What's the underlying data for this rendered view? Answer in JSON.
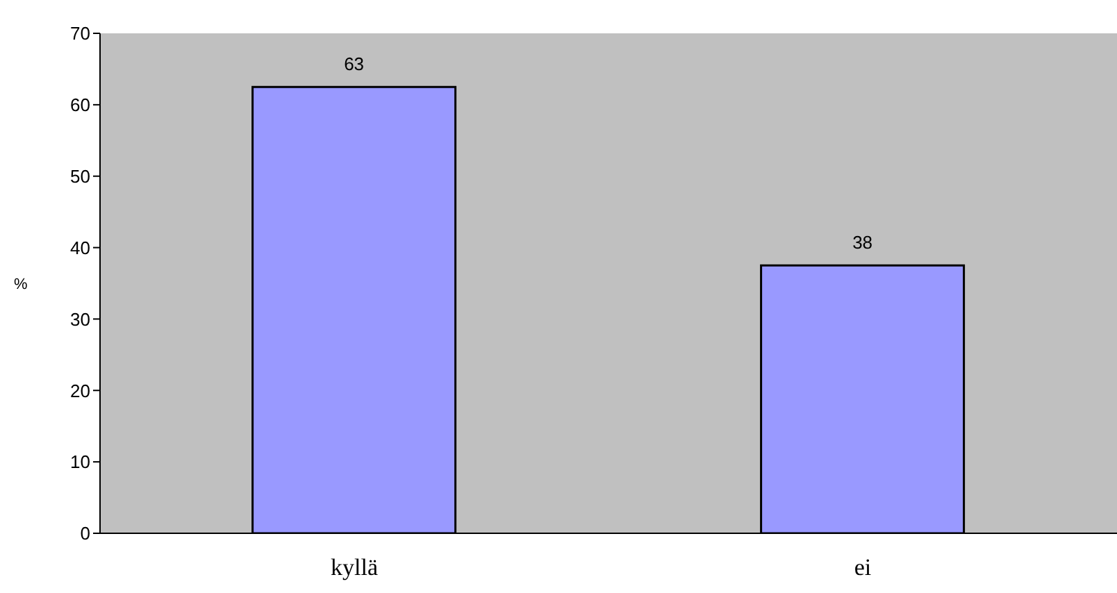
{
  "chart_data": {
    "type": "bar",
    "ylabel": "%",
    "categories": [
      "kyllä",
      "ei"
    ],
    "series": [
      {
        "color": "#9999ff",
        "values": [
          62.5,
          37.5
        ],
        "value_labels": [
          "63",
          "38"
        ]
      }
    ],
    "ylim": [
      0,
      70
    ],
    "yticks": [
      0,
      10,
      20,
      30,
      40,
      50,
      60,
      70
    ],
    "grid": false,
    "legend": false
  }
}
